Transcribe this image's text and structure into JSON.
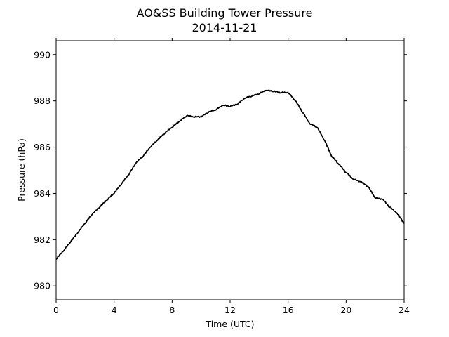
{
  "chart_data": {
    "type": "line",
    "title": "AO&SS Building Tower Pressure",
    "subtitle": "2014-11-21",
    "xlabel": "Time (UTC)",
    "ylabel": "Pressure (hPa)",
    "xlim": [
      0,
      24
    ],
    "ylim": [
      979.4,
      990.6
    ],
    "xticks": [
      0,
      4,
      8,
      12,
      16,
      20,
      24
    ],
    "yticks": [
      980,
      982,
      984,
      986,
      988,
      990
    ],
    "grid": false,
    "legend": false,
    "line_color": "#000000",
    "series": [
      {
        "x": [
          0,
          0.5,
          1,
          1.5,
          2,
          2.5,
          3,
          3.5,
          4,
          4.5,
          5,
          5.5,
          6,
          6.5,
          7,
          7.5,
          8,
          8.5,
          9,
          9.5,
          10,
          10.5,
          11,
          11.5,
          12,
          12.5,
          13,
          13.5,
          14,
          14.5,
          15,
          15.5,
          16,
          16.5,
          17,
          17.5,
          18,
          18.5,
          19,
          19.5,
          20,
          20.5,
          21,
          21.5,
          22,
          22.5,
          23,
          23.5,
          24
        ],
        "y": [
          981.15,
          981.5,
          981.9,
          982.3,
          982.7,
          983.1,
          983.4,
          983.7,
          984.0,
          984.4,
          984.8,
          985.3,
          985.6,
          986.0,
          986.3,
          986.6,
          986.85,
          987.1,
          987.35,
          987.3,
          987.3,
          987.5,
          987.6,
          987.8,
          987.75,
          987.85,
          988.1,
          988.2,
          988.3,
          988.45,
          988.4,
          988.35,
          988.35,
          988.0,
          987.5,
          987.0,
          986.85,
          986.3,
          985.6,
          985.25,
          984.9,
          984.6,
          984.5,
          984.3,
          983.8,
          983.75,
          983.4,
          983.15,
          982.7
        ]
      }
    ]
  }
}
